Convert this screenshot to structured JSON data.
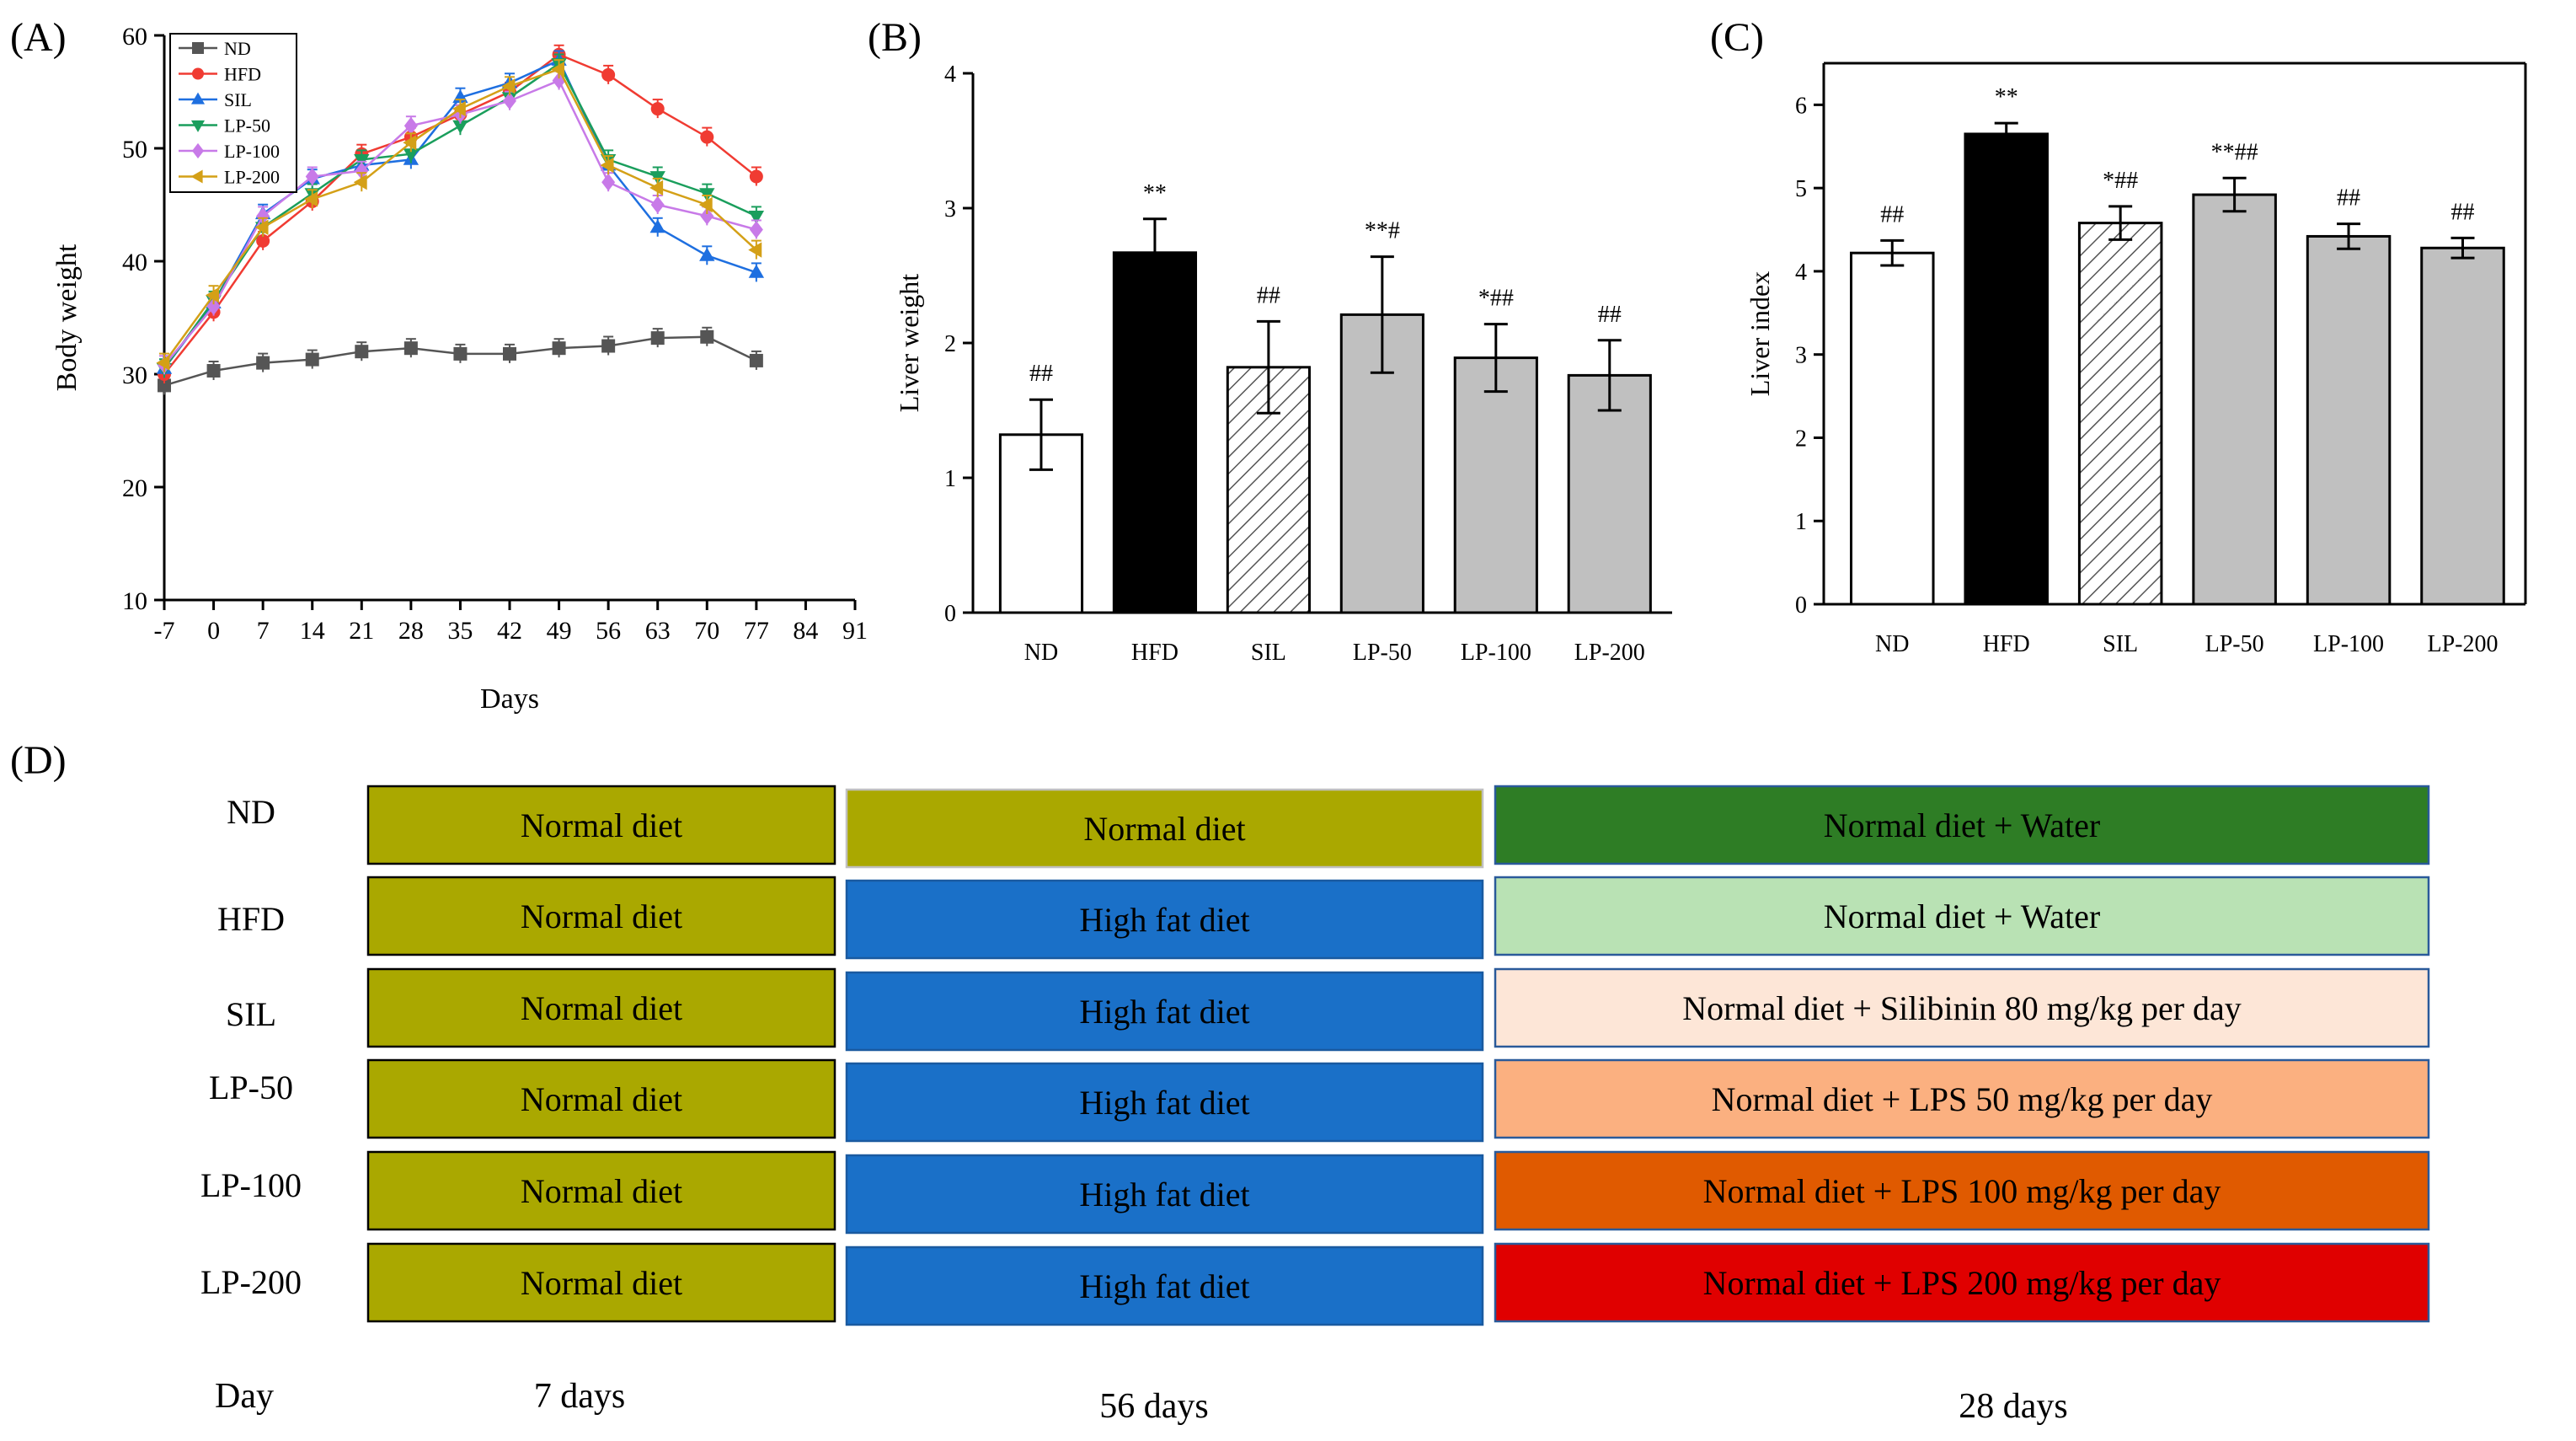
{
  "colors": {
    "ND": "#555555",
    "HFD": "#f03b32",
    "SIL": "#1e6fe0",
    "LP-50": "#1a9e5c",
    "LP-100": "#c87ae8",
    "LP-200": "#d4a017",
    "olive": "#aaa800",
    "blue": "#1a70c8",
    "darkgreen": "#2e7d25",
    "lightgreen": "#b9e2b4",
    "peach": "#fde6d7",
    "salmon": "#fbb080",
    "orange": "#e05a00",
    "red": "#e00000"
  },
  "chart_data": [
    {
      "panel": "(A)",
      "type": "line",
      "xlabel": "Days",
      "ylabel": "Body weight",
      "xlim": [
        -7,
        91
      ],
      "ylim": [
        10,
        60
      ],
      "xticks": [
        "-7",
        "0",
        "7",
        "14",
        "21",
        "28",
        "35",
        "42",
        "49",
        "56",
        "63",
        "70",
        "77",
        "84",
        "91"
      ],
      "yticks": [
        "10",
        "20",
        "30",
        "40",
        "50",
        "60"
      ],
      "x": [
        -7,
        0,
        7,
        14,
        21,
        28,
        35,
        42,
        49,
        56,
        63,
        70,
        77
      ],
      "series": [
        {
          "name": "ND",
          "marker": "square",
          "values": [
            29,
            30.3,
            31,
            31.3,
            32,
            32.3,
            31.8,
            31.8,
            32.3,
            32.5,
            33.2,
            33.3,
            31.2
          ]
        },
        {
          "name": "HFD",
          "marker": "circle",
          "values": [
            30,
            35.5,
            41.8,
            45.3,
            49.5,
            51,
            53,
            55,
            58.3,
            56.5,
            53.5,
            51,
            47.5
          ]
        },
        {
          "name": "SIL",
          "marker": "triangle-up",
          "values": [
            30.5,
            36.3,
            44.2,
            47.3,
            48.5,
            49,
            54.5,
            55.8,
            57.8,
            48.5,
            43,
            40.5,
            39
          ]
        },
        {
          "name": "LP-50",
          "marker": "triangle-down",
          "values": [
            30.5,
            36.5,
            43,
            46,
            49,
            49.5,
            52,
            54.5,
            57.5,
            49,
            47.5,
            46,
            44
          ]
        },
        {
          "name": "LP-100",
          "marker": "diamond",
          "values": [
            30.8,
            36,
            44,
            47.5,
            48,
            52,
            53,
            54.2,
            56,
            47,
            45,
            44,
            42.8
          ]
        },
        {
          "name": "LP-200",
          "marker": "triangle-left",
          "values": [
            31,
            37,
            43,
            45.5,
            47,
            50.5,
            53.5,
            55.5,
            57,
            48.5,
            46.5,
            45,
            41
          ]
        }
      ]
    },
    {
      "panel": "(B)",
      "type": "bar",
      "ylabel": "Liver weight",
      "ylim": [
        0,
        4
      ],
      "yticks": [
        "0",
        "1",
        "2",
        "3",
        "4"
      ],
      "categories": [
        "ND",
        "HFD",
        "SIL",
        "LP-50",
        "LP-100",
        "LP-200"
      ],
      "values": [
        1.32,
        2.67,
        1.82,
        2.21,
        1.89,
        1.76
      ],
      "errors": [
        0.26,
        0.25,
        0.34,
        0.43,
        0.25,
        0.26
      ],
      "annotations": [
        "##",
        "**",
        "##",
        "**#",
        "*##",
        "##"
      ]
    },
    {
      "panel": "(C)",
      "type": "bar",
      "ylabel": "Liver index",
      "ylim": [
        0,
        6.5
      ],
      "yticks": [
        "0",
        "1",
        "2",
        "3",
        "4",
        "5",
        "6"
      ],
      "categories": [
        "ND",
        "HFD",
        "SIL",
        "LP-50",
        "LP-100",
        "LP-200"
      ],
      "values": [
        4.22,
        5.65,
        4.58,
        4.92,
        4.42,
        4.28
      ],
      "errors": [
        0.15,
        0.13,
        0.2,
        0.2,
        0.15,
        0.12
      ],
      "annotations": [
        "##",
        "**",
        "*##",
        "**##",
        "##",
        "##"
      ]
    }
  ],
  "panel_d": {
    "label": "(D)",
    "day_label": "Day",
    "durations": [
      "7 days",
      "56 days",
      "28 days"
    ],
    "rows": [
      {
        "group": "ND",
        "phase1": "Normal diet",
        "phase2": "Normal diet",
        "phase3": "Normal diet + Water"
      },
      {
        "group": "HFD",
        "phase1": "Normal diet",
        "phase2": "High fat diet",
        "phase3": "Normal diet + Water"
      },
      {
        "group": "SIL",
        "phase1": "Normal diet",
        "phase2": "High fat diet",
        "phase3": "Normal diet + Silibinin 80 mg/kg per day"
      },
      {
        "group": "LP-50",
        "phase1": "Normal diet",
        "phase2": "High fat diet",
        "phase3": "Normal diet + LPS 50 mg/kg per day"
      },
      {
        "group": "LP-100",
        "phase1": "Normal diet",
        "phase2": "High fat diet",
        "phase3": "Normal diet + LPS 100 mg/kg per day"
      },
      {
        "group": "LP-200",
        "phase1": "Normal diet",
        "phase2": "High fat diet",
        "phase3": "Normal diet + LPS 200 mg/kg per day"
      }
    ]
  }
}
